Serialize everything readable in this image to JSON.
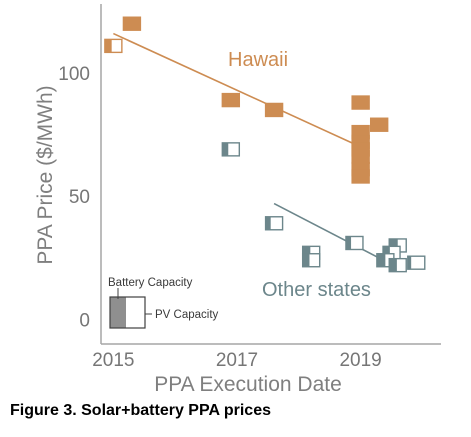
{
  "caption": "Figure 3. Solar+battery PPA prices",
  "chart_data": {
    "type": "scatter",
    "title": "",
    "xlabel": "PPA Execution Date",
    "ylabel": "PPA Price ($/MWh)",
    "xlim": [
      2014.8,
      2020.3
    ],
    "ylim": [
      -10,
      128
    ],
    "x_ticks": [
      2015,
      2017,
      2019
    ],
    "y_ticks": [
      0,
      50,
      100
    ],
    "grid": false,
    "legend": {
      "placement": "bottom-left",
      "battery_label": "Battery Capacity",
      "pv_label": "PV Capacity"
    },
    "series": [
      {
        "name": "Hawaii",
        "color": "#cd8c52",
        "points": [
          {
            "x": 2015.0,
            "y": 111,
            "battery": 0.4
          },
          {
            "x": 2015.3,
            "y": 120,
            "battery": 1.0
          },
          {
            "x": 2016.9,
            "y": 89,
            "battery": 1.0
          },
          {
            "x": 2017.6,
            "y": 85,
            "battery": 1.0
          },
          {
            "x": 2019.0,
            "y": 88,
            "battery": 1.0
          },
          {
            "x": 2019.3,
            "y": 79,
            "battery": 1.0
          },
          {
            "x": 2019.0,
            "y": 76,
            "battery": 1.0
          },
          {
            "x": 2019.0,
            "y": 72,
            "battery": 1.0
          },
          {
            "x": 2019.0,
            "y": 69,
            "battery": 1.0
          },
          {
            "x": 2019.0,
            "y": 66,
            "battery": 1.0
          },
          {
            "x": 2019.0,
            "y": 61,
            "battery": 1.0
          },
          {
            "x": 2019.0,
            "y": 58,
            "battery": 1.0
          }
        ],
        "trend": {
          "x": [
            2015.0,
            2019.0
          ],
          "y": [
            116,
            70
          ]
        }
      },
      {
        "name": "Other states",
        "color": "#6c868b",
        "points": [
          {
            "x": 2016.9,
            "y": 69,
            "battery": 0.35
          },
          {
            "x": 2017.6,
            "y": 39,
            "battery": 0.3
          },
          {
            "x": 2018.2,
            "y": 27,
            "battery": 0.45
          },
          {
            "x": 2018.2,
            "y": 24,
            "battery": 0.4
          },
          {
            "x": 2018.9,
            "y": 31,
            "battery": 0.3
          },
          {
            "x": 2019.6,
            "y": 30,
            "battery": 0.5
          },
          {
            "x": 2019.5,
            "y": 27,
            "battery": 0.4
          },
          {
            "x": 2019.4,
            "y": 24,
            "battery": 0.5
          },
          {
            "x": 2019.6,
            "y": 22,
            "battery": 0.45
          },
          {
            "x": 2019.9,
            "y": 23,
            "battery": 0.2
          }
        ],
        "trend": {
          "x": [
            2017.6,
            2019.6
          ],
          "y": [
            47,
            21
          ]
        }
      }
    ]
  }
}
